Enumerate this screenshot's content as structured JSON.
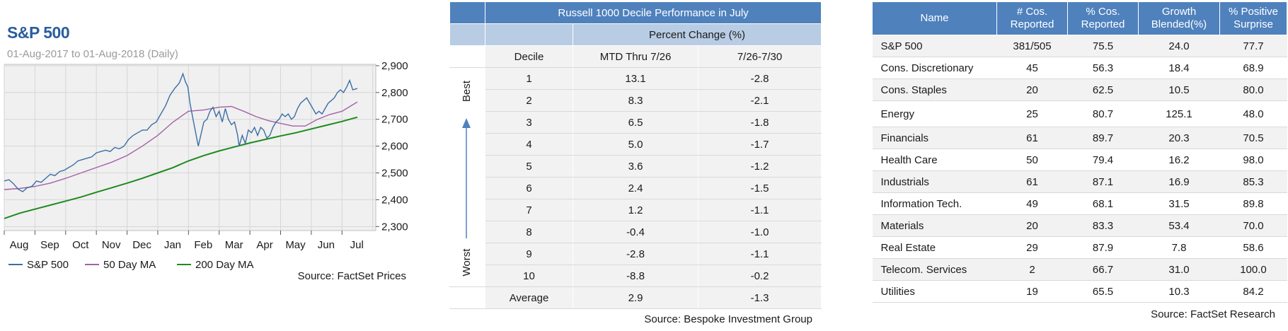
{
  "chart_data": [
    {
      "type": "line",
      "title": "S&P 500",
      "subtitle": "01-Aug-2017 to 01-Aug-2018 (Daily)",
      "xlabel": "",
      "ylabel": "",
      "x_tick_labels": [
        "Aug",
        "Sep",
        "Oct",
        "Nov",
        "Dec",
        "Jan",
        "Feb",
        "Mar",
        "Apr",
        "May",
        "Jun",
        "Jul"
      ],
      "y_tick_labels": [
        "2,900",
        "2,800",
        "2,700",
        "2,600",
        "2,500",
        "2,400",
        "2,300"
      ],
      "y_ticks": [
        2900,
        2800,
        2700,
        2600,
        2500,
        2400,
        2300
      ],
      "ylim": [
        2285,
        2905
      ],
      "xlim": [
        0,
        12.1
      ],
      "grid": true,
      "legend_position": "bottom",
      "colors": {
        "sp500": "#3a6ea5",
        "ma50": "#a461a8",
        "ma200": "#1e8a1e",
        "plot_bg": "#f0f0f0",
        "frame": "#bfbfbf"
      },
      "series": [
        {
          "name": "S&P 500",
          "color": "#3a6ea5",
          "points": [
            [
              0.0,
              2470
            ],
            [
              0.15,
              2475
            ],
            [
              0.3,
              2460
            ],
            [
              0.45,
              2440
            ],
            [
              0.6,
              2430
            ],
            [
              0.75,
              2445
            ],
            [
              0.9,
              2450
            ],
            [
              1.05,
              2470
            ],
            [
              1.2,
              2465
            ],
            [
              1.35,
              2480
            ],
            [
              1.5,
              2495
            ],
            [
              1.65,
              2490
            ],
            [
              1.8,
              2505
            ],
            [
              1.95,
              2510
            ],
            [
              2.1,
              2520
            ],
            [
              2.25,
              2530
            ],
            [
              2.4,
              2545
            ],
            [
              2.55,
              2550
            ],
            [
              2.7,
              2555
            ],
            [
              2.85,
              2560
            ],
            [
              3.0,
              2575
            ],
            [
              3.15,
              2580
            ],
            [
              3.3,
              2585
            ],
            [
              3.45,
              2580
            ],
            [
              3.6,
              2595
            ],
            [
              3.75,
              2590
            ],
            [
              3.9,
              2600
            ],
            [
              4.05,
              2625
            ],
            [
              4.2,
              2640
            ],
            [
              4.35,
              2650
            ],
            [
              4.5,
              2660
            ],
            [
              4.65,
              2660
            ],
            [
              4.8,
              2680
            ],
            [
              4.95,
              2690
            ],
            [
              5.1,
              2720
            ],
            [
              5.25,
              2750
            ],
            [
              5.4,
              2790
            ],
            [
              5.55,
              2815
            ],
            [
              5.7,
              2835
            ],
            [
              5.82,
              2870
            ],
            [
              5.9,
              2840
            ],
            [
              5.98,
              2820
            ],
            [
              6.05,
              2760
            ],
            [
              6.15,
              2700
            ],
            [
              6.25,
              2640
            ],
            [
              6.32,
              2600
            ],
            [
              6.4,
              2640
            ],
            [
              6.5,
              2690
            ],
            [
              6.6,
              2700
            ],
            [
              6.7,
              2730
            ],
            [
              6.8,
              2745
            ],
            [
              6.9,
              2710
            ],
            [
              7.0,
              2730
            ],
            [
              7.1,
              2690
            ],
            [
              7.2,
              2740
            ],
            [
              7.3,
              2700
            ],
            [
              7.4,
              2680
            ],
            [
              7.5,
              2690
            ],
            [
              7.6,
              2640
            ],
            [
              7.65,
              2600
            ],
            [
              7.75,
              2640
            ],
            [
              7.85,
              2610
            ],
            [
              7.95,
              2660
            ],
            [
              8.05,
              2650
            ],
            [
              8.15,
              2670
            ],
            [
              8.25,
              2640
            ],
            [
              8.35,
              2670
            ],
            [
              8.45,
              2660
            ],
            [
              8.55,
              2630
            ],
            [
              8.65,
              2640
            ],
            [
              8.75,
              2670
            ],
            [
              8.85,
              2690
            ],
            [
              8.95,
              2700
            ],
            [
              9.05,
              2720
            ],
            [
              9.15,
              2710
            ],
            [
              9.25,
              2720
            ],
            [
              9.35,
              2700
            ],
            [
              9.45,
              2710
            ],
            [
              9.55,
              2740
            ],
            [
              9.65,
              2760
            ],
            [
              9.75,
              2770
            ],
            [
              9.85,
              2780
            ],
            [
              9.95,
              2760
            ],
            [
              10.05,
              2740
            ],
            [
              10.15,
              2720
            ],
            [
              10.25,
              2730
            ],
            [
              10.35,
              2720
            ],
            [
              10.45,
              2740
            ],
            [
              10.55,
              2760
            ],
            [
              10.65,
              2770
            ],
            [
              10.75,
              2780
            ],
            [
              10.85,
              2800
            ],
            [
              10.95,
              2810
            ],
            [
              11.05,
              2800
            ],
            [
              11.15,
              2820
            ],
            [
              11.25,
              2845
            ],
            [
              11.35,
              2810
            ],
            [
              11.5,
              2815
            ]
          ]
        },
        {
          "name": "50 Day MA",
          "color": "#a461a8",
          "points": [
            [
              0.0,
              2438
            ],
            [
              0.5,
              2442
            ],
            [
              1.0,
              2450
            ],
            [
              1.5,
              2462
            ],
            [
              2.0,
              2480
            ],
            [
              2.5,
              2500
            ],
            [
              3.0,
              2520
            ],
            [
              3.5,
              2540
            ],
            [
              4.0,
              2565
            ],
            [
              4.5,
              2600
            ],
            [
              5.0,
              2640
            ],
            [
              5.5,
              2690
            ],
            [
              6.0,
              2730
            ],
            [
              6.5,
              2735
            ],
            [
              7.0,
              2745
            ],
            [
              7.4,
              2748
            ],
            [
              7.8,
              2730
            ],
            [
              8.2,
              2710
            ],
            [
              8.6,
              2695
            ],
            [
              9.0,
              2685
            ],
            [
              9.4,
              2675
            ],
            [
              9.8,
              2675
            ],
            [
              10.2,
              2700
            ],
            [
              10.6,
              2718
            ],
            [
              11.0,
              2730
            ],
            [
              11.5,
              2765
            ]
          ]
        },
        {
          "name": "200 Day MA",
          "color": "#1e8a1e",
          "points": [
            [
              0.0,
              2330
            ],
            [
              0.5,
              2350
            ],
            [
              1.0,
              2365
            ],
            [
              1.5,
              2380
            ],
            [
              2.0,
              2395
            ],
            [
              2.5,
              2410
            ],
            [
              3.0,
              2428
            ],
            [
              3.5,
              2445
            ],
            [
              4.0,
              2462
            ],
            [
              4.5,
              2480
            ],
            [
              5.0,
              2500
            ],
            [
              5.5,
              2520
            ],
            [
              6.0,
              2545
            ],
            [
              6.5,
              2565
            ],
            [
              7.0,
              2582
            ],
            [
              7.5,
              2597
            ],
            [
              8.0,
              2612
            ],
            [
              8.5,
              2625
            ],
            [
              9.0,
              2638
            ],
            [
              9.5,
              2650
            ],
            [
              10.0,
              2664
            ],
            [
              10.5,
              2678
            ],
            [
              11.0,
              2692
            ],
            [
              11.5,
              2708
            ]
          ]
        }
      ]
    },
    {
      "type": "table",
      "title": "Russell 1000 Decile Performance in July",
      "group_header": "Percent Change (%)",
      "columns": [
        "Decile",
        "MTD Thru 7/26",
        "7/26-7/30"
      ],
      "side_labels": {
        "top": "Best",
        "bottom": "Worst"
      },
      "arrow_color": "#4f81bd",
      "rows": [
        [
          "1",
          "13.1",
          "-2.8"
        ],
        [
          "2",
          "8.3",
          "-2.1"
        ],
        [
          "3",
          "6.5",
          "-1.8"
        ],
        [
          "4",
          "5.0",
          "-1.7"
        ],
        [
          "5",
          "3.6",
          "-1.2"
        ],
        [
          "6",
          "2.4",
          "-1.5"
        ],
        [
          "7",
          "1.2",
          "-1.1"
        ],
        [
          "8",
          "-0.4",
          "-1.0"
        ],
        [
          "9",
          "-2.8",
          "-1.1"
        ],
        [
          "10",
          "-8.8",
          "-0.2"
        ],
        [
          "Average",
          "2.9",
          "-1.3"
        ]
      ],
      "source": "Source: Bespoke Investment Group"
    },
    {
      "type": "table",
      "columns": [
        "Name",
        "# Cos. Reported",
        "% Cos. Reported",
        "Growth Blended(%)",
        "% Positive Surprise"
      ],
      "column_lines": [
        [
          "Name"
        ],
        [
          "# Cos.",
          "Reported"
        ],
        [
          "% Cos.",
          "Reported"
        ],
        [
          "Growth",
          "Blended(%)"
        ],
        [
          "% Positive",
          "Surprise"
        ]
      ],
      "rows": [
        [
          "S&P 500",
          "381/505",
          "75.5",
          "24.0",
          "77.7"
        ],
        [
          "Cons. Discretionary",
          "45",
          "56.3",
          "18.4",
          "68.9"
        ],
        [
          "Cons. Staples",
          "20",
          "62.5",
          "10.5",
          "80.0"
        ],
        [
          "Energy",
          "25",
          "80.7",
          "125.1",
          "48.0"
        ],
        [
          "Financials",
          "61",
          "89.7",
          "20.3",
          "70.5"
        ],
        [
          "Health Care",
          "50",
          "79.4",
          "16.2",
          "98.0"
        ],
        [
          "Industrials",
          "61",
          "87.1",
          "16.9",
          "85.3"
        ],
        [
          "Information Tech.",
          "49",
          "68.1",
          "31.5",
          "89.8"
        ],
        [
          "Materials",
          "20",
          "83.3",
          "53.4",
          "70.0"
        ],
        [
          "Real Estate",
          "29",
          "87.9",
          "7.8",
          "58.6"
        ],
        [
          "Telecom. Services",
          "2",
          "66.7",
          "31.0",
          "100.0"
        ],
        [
          "Utilities",
          "19",
          "65.5",
          "10.3",
          "84.2"
        ]
      ],
      "source": "Source: FactSet Research"
    }
  ],
  "chart_source": "Source: FactSet Prices"
}
